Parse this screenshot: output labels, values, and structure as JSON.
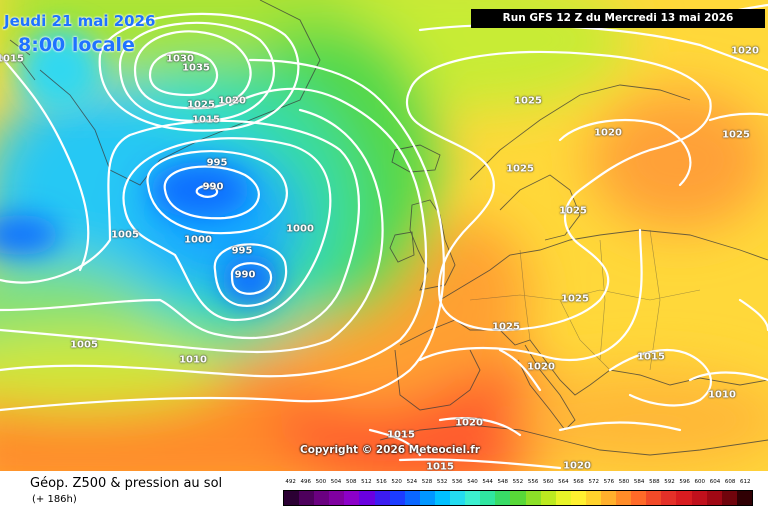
{
  "header": {
    "valid_date": "Jeudi 21 mai 2026",
    "valid_time": "8:00 locale",
    "run_info": "Run GFS 12 Z du Mercredi 13 mai 2026"
  },
  "copyright": "Copyright © 2026 Meteociel.fr",
  "legend": {
    "title": "Géop. Z500 & pression au sol",
    "subtitle": "(+ 186h)",
    "scale_values": [
      "492",
      "496",
      "500",
      "504",
      "508",
      "512",
      "516",
      "520",
      "524",
      "528",
      "532",
      "536",
      "540",
      "544",
      "548",
      "552",
      "556",
      "560",
      "564",
      "568",
      "572",
      "576",
      "580",
      "584",
      "588",
      "592",
      "596",
      "600",
      "604",
      "608",
      "612"
    ],
    "scale_colors": [
      "#2b0033",
      "#4d005c",
      "#6a0080",
      "#8000a0",
      "#8c00c8",
      "#6a00e0",
      "#3c1cf0",
      "#1c3cff",
      "#0a66ff",
      "#0096ff",
      "#00c0ff",
      "#24dcf0",
      "#3cf0d0",
      "#30e6a0",
      "#38dc66",
      "#58d838",
      "#8ce028",
      "#bcea20",
      "#e8f428",
      "#fff030",
      "#ffd22c",
      "#ffb02c",
      "#ff8c28",
      "#ff6a28",
      "#f24a28",
      "#e43028",
      "#d81c20",
      "#c0101c",
      "#a00814",
      "#70040c",
      "#300004"
    ]
  },
  "pressure_labels": [
    {
      "text": "1015"
    },
    {
      "text": "1030"
    },
    {
      "text": "1035"
    },
    {
      "text": "1025"
    },
    {
      "text": "1020"
    },
    {
      "text": "1015"
    },
    {
      "text": "995"
    },
    {
      "text": "990"
    },
    {
      "text": "1005"
    },
    {
      "text": "1000"
    },
    {
      "text": "995"
    },
    {
      "text": "1000"
    },
    {
      "text": "990"
    },
    {
      "text": "1005"
    },
    {
      "text": "1010"
    },
    {
      "text": "1020"
    },
    {
      "text": "1025"
    },
    {
      "text": "1020"
    },
    {
      "text": "1025"
    },
    {
      "text": "1025"
    },
    {
      "text": "1025"
    },
    {
      "text": "1025"
    },
    {
      "text": "1025"
    },
    {
      "text": "1020"
    },
    {
      "text": "1015"
    },
    {
      "text": "1010"
    },
    {
      "text": "1020"
    },
    {
      "text": "1015"
    },
    {
      "text": "1015"
    },
    {
      "text": "1020"
    }
  ]
}
